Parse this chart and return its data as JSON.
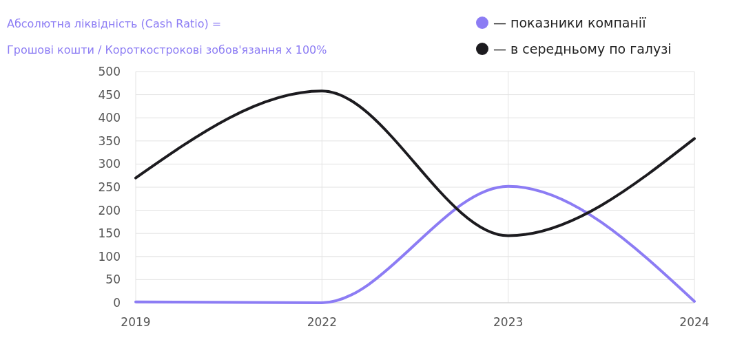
{
  "chart_data": {
    "type": "line",
    "title": "Абсолютна ліквідність (Cash Ratio) =",
    "subtitle": "Грошові кошти / Короткострокові зобов'язання х 100%",
    "categories": [
      "2019",
      "2022",
      "2023",
      "2024"
    ],
    "series": [
      {
        "name": "— показники компанії",
        "color": "#8c7cf4",
        "values": [
          2,
          0,
          252,
          3
        ]
      },
      {
        "name": "— в середньому по галузі",
        "color": "#1c1b1f",
        "values": [
          270,
          458,
          145,
          355
        ]
      }
    ],
    "ylim": [
      0,
      500
    ],
    "yticks": [
      0,
      50,
      100,
      150,
      200,
      250,
      300,
      350,
      400,
      450,
      500
    ],
    "grid": true,
    "legend": "top right",
    "marker": "none"
  }
}
